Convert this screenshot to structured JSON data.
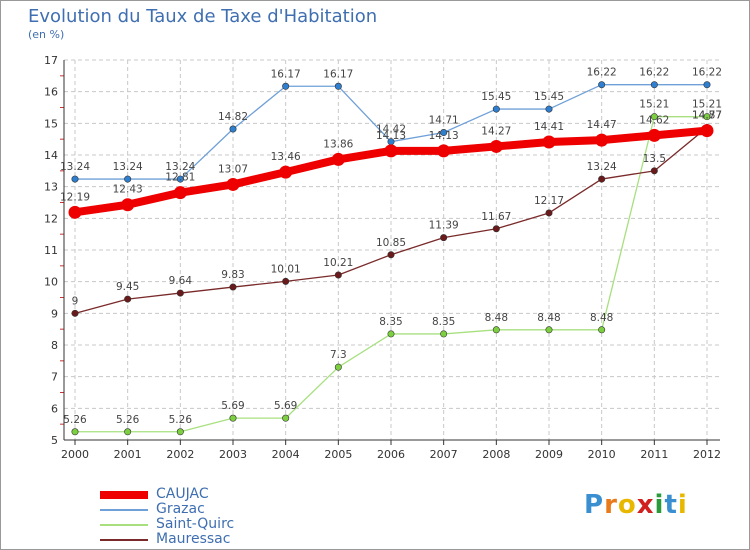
{
  "header": {
    "title": "Evolution du Taux de Taxe d'Habitation",
    "subtitle": "(en %)"
  },
  "logo": {
    "text": "Proxiti"
  },
  "chart_data": {
    "type": "line",
    "x": [
      "2000",
      "2001",
      "2002",
      "2003",
      "2004",
      "2005",
      "2006",
      "2007",
      "2008",
      "2009",
      "2010",
      "2011",
      "2012"
    ],
    "ylim": [
      5,
      17
    ],
    "yticks": [
      5,
      6,
      7,
      8,
      9,
      10,
      11,
      12,
      13,
      14,
      15,
      16,
      17
    ],
    "grid": true,
    "legend_position": "bottom-left",
    "series": [
      {
        "name": "Grazac",
        "color": "#6fa0d8",
        "point_color": "#2f7fd0",
        "width": 1.3,
        "values": [
          13.24,
          13.24,
          13.24,
          14.82,
          16.17,
          16.17,
          14.42,
          14.71,
          15.45,
          15.45,
          16.22,
          16.22,
          16.22
        ],
        "labels": [
          "13.24",
          "13.24",
          "13.24",
          "14.82",
          "16.17",
          "16.17",
          "14.42",
          "14.71",
          "15.45",
          "15.45",
          "16.22",
          "16.22",
          "16.22"
        ]
      },
      {
        "name": "Saint-Quirc",
        "color": "#a8e080",
        "point_color": "#7cd040",
        "width": 1.3,
        "values": [
          5.26,
          5.26,
          5.26,
          5.69,
          5.69,
          7.3,
          8.35,
          8.35,
          8.48,
          8.48,
          8.48,
          15.21,
          15.21
        ],
        "labels": [
          "5.26",
          "5.26",
          "5.26",
          "5.69",
          "5.69",
          "7.3",
          "8.35",
          "8.35",
          "8.48",
          "8.48",
          "8.48",
          "15.21",
          "15.21"
        ]
      },
      {
        "name": "Mauressac",
        "color": "#7a2a2a",
        "point_color": "#6a1a1a",
        "width": 1.3,
        "values": [
          9,
          9.45,
          9.64,
          9.83,
          10.01,
          10.21,
          10.85,
          11.39,
          11.67,
          12.17,
          13.24,
          13.5,
          14.87
        ],
        "labels": [
          "9",
          "9.45",
          "9.64",
          "9.83",
          "10.01",
          "10.21",
          "10.85",
          "11.39",
          "11.67",
          "12.17",
          "13.24",
          "13.5",
          "14.87"
        ]
      },
      {
        "name": "CAUJAC",
        "color": "#ee0000",
        "point_color": "#ee0000",
        "width": 8,
        "values": [
          12.19,
          12.43,
          12.81,
          13.07,
          13.46,
          13.86,
          14.13,
          14.13,
          14.27,
          14.41,
          14.47,
          14.62,
          14.77
        ],
        "labels": [
          "12.19",
          "12.43",
          "12.81",
          "13.07",
          "13.46",
          "13.86",
          "14.13",
          "14.13",
          "14.27",
          "14.41",
          "14.47",
          "14.62",
          "14.77"
        ]
      }
    ],
    "legend": [
      {
        "name": "CAUJAC",
        "color": "#ee0000",
        "width": 8
      },
      {
        "name": "Grazac",
        "color": "#6fa0d8",
        "width": 2
      },
      {
        "name": "Saint-Quirc",
        "color": "#a8e080",
        "width": 2
      },
      {
        "name": "Mauressac",
        "color": "#7a2a2a",
        "width": 2
      }
    ]
  }
}
